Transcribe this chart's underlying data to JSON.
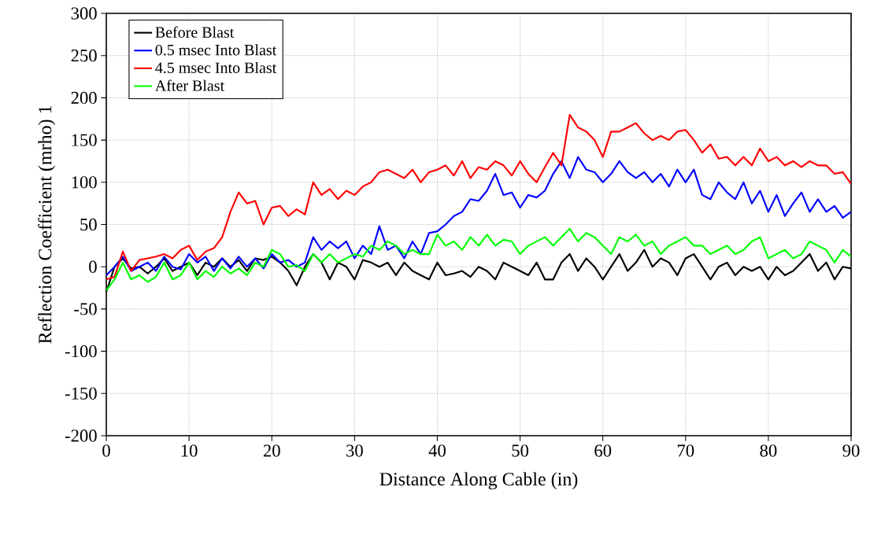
{
  "chart_data": {
    "type": "line",
    "xlabel": "Distance Along Cable (in)",
    "ylabel": "Reflection Coefficient (mrho)  1",
    "xlim": [
      0,
      90
    ],
    "ylim": [
      -200,
      300
    ],
    "xticks": [
      0,
      10,
      20,
      30,
      40,
      50,
      60,
      70,
      80,
      90
    ],
    "yticks": [
      -200,
      -150,
      -100,
      -50,
      0,
      50,
      100,
      150,
      200,
      250,
      300
    ],
    "grid": true,
    "legend": "top left",
    "marker": "none",
    "line_style": "solid",
    "x": [
      0,
      1,
      2,
      3,
      4,
      5,
      6,
      7,
      8,
      9,
      10,
      11,
      12,
      13,
      14,
      15,
      16,
      17,
      18,
      19,
      20,
      21,
      22,
      23,
      24,
      25,
      26,
      27,
      28,
      29,
      30,
      31,
      32,
      33,
      34,
      35,
      36,
      37,
      38,
      39,
      40,
      41,
      42,
      43,
      44,
      45,
      46,
      47,
      48,
      49,
      50,
      51,
      52,
      53,
      54,
      55,
      56,
      57,
      58,
      59,
      60,
      61,
      62,
      63,
      64,
      65,
      66,
      67,
      68,
      69,
      70,
      71,
      72,
      73,
      74,
      75,
      76,
      77,
      78,
      79,
      80,
      81,
      82,
      83,
      84,
      85,
      86,
      87,
      88,
      89,
      90
    ],
    "series": [
      {
        "name": "Before Blast",
        "color": "#000000",
        "values": [
          -30,
          0,
          10,
          -2,
          0,
          -8,
          0,
          10,
          -5,
          0,
          5,
          -10,
          5,
          0,
          10,
          0,
          8,
          -5,
          10,
          8,
          12,
          5,
          -5,
          -22,
          0,
          15,
          5,
          -15,
          5,
          0,
          -15,
          8,
          5,
          0,
          5,
          -10,
          5,
          -5,
          -10,
          -15,
          5,
          -10,
          -8,
          -5,
          -12,
          0,
          -5,
          -15,
          5,
          0,
          -5,
          -10,
          5,
          -15,
          -15,
          5,
          15,
          -5,
          10,
          0,
          -15,
          0,
          15,
          -5,
          5,
          20,
          0,
          10,
          5,
          -10,
          10,
          15,
          0,
          -15,
          0,
          5,
          -10,
          0,
          -5,
          0,
          -15,
          0,
          -10,
          -5,
          5,
          15,
          -5,
          5,
          -15,
          0,
          -2
        ]
      },
      {
        "name": "0.5 msec Into Blast",
        "color": "#0000ff",
        "values": [
          -10,
          0,
          12,
          -5,
          0,
          5,
          -5,
          12,
          0,
          -3,
          15,
          5,
          12,
          -5,
          10,
          -2,
          12,
          0,
          10,
          -2,
          15,
          5,
          8,
          0,
          5,
          35,
          20,
          30,
          22,
          30,
          10,
          25,
          15,
          48,
          20,
          25,
          10,
          30,
          15,
          40,
          42,
          50,
          60,
          65,
          80,
          78,
          90,
          110,
          85,
          88,
          70,
          85,
          82,
          90,
          110,
          125,
          105,
          130,
          115,
          112,
          100,
          110,
          125,
          112,
          105,
          112,
          100,
          110,
          95,
          115,
          100,
          115,
          85,
          80,
          100,
          88,
          80,
          100,
          75,
          90,
          65,
          85,
          60,
          75,
          88,
          65,
          80,
          65,
          72,
          58,
          65
        ]
      },
      {
        "name": "4.5 msec Into Blast",
        "color": "#ff0000",
        "values": [
          -15,
          -12,
          18,
          -5,
          8,
          10,
          12,
          15,
          10,
          20,
          25,
          8,
          18,
          22,
          35,
          65,
          88,
          75,
          78,
          50,
          70,
          72,
          60,
          68,
          62,
          100,
          85,
          92,
          80,
          90,
          85,
          95,
          100,
          112,
          115,
          110,
          105,
          115,
          100,
          112,
          115,
          120,
          108,
          125,
          105,
          118,
          115,
          125,
          120,
          108,
          125,
          110,
          100,
          118,
          135,
          120,
          180,
          165,
          160,
          150,
          130,
          160,
          160,
          165,
          170,
          158,
          150,
          155,
          150,
          160,
          162,
          150,
          135,
          145,
          128,
          130,
          120,
          130,
          120,
          140,
          125,
          130,
          120,
          125,
          118,
          125,
          120,
          120,
          110,
          112,
          98
        ]
      },
      {
        "name": "After Blast",
        "color": "#00ff00",
        "values": [
          -28,
          -15,
          5,
          -15,
          -10,
          -18,
          -12,
          5,
          -15,
          -10,
          5,
          -15,
          -5,
          -12,
          0,
          -8,
          -2,
          -10,
          5,
          0,
          20,
          15,
          0,
          2,
          -5,
          15,
          5,
          15,
          5,
          10,
          15,
          12,
          25,
          20,
          30,
          25,
          15,
          20,
          15,
          15,
          38,
          25,
          30,
          20,
          35,
          25,
          38,
          25,
          32,
          30,
          15,
          25,
          30,
          35,
          25,
          35,
          45,
          30,
          40,
          35,
          25,
          15,
          35,
          30,
          38,
          25,
          30,
          15,
          25,
          30,
          35,
          25,
          25,
          15,
          20,
          25,
          15,
          20,
          30,
          35,
          10,
          15,
          20,
          10,
          15,
          30,
          25,
          20,
          5,
          20,
          12
        ]
      }
    ]
  }
}
